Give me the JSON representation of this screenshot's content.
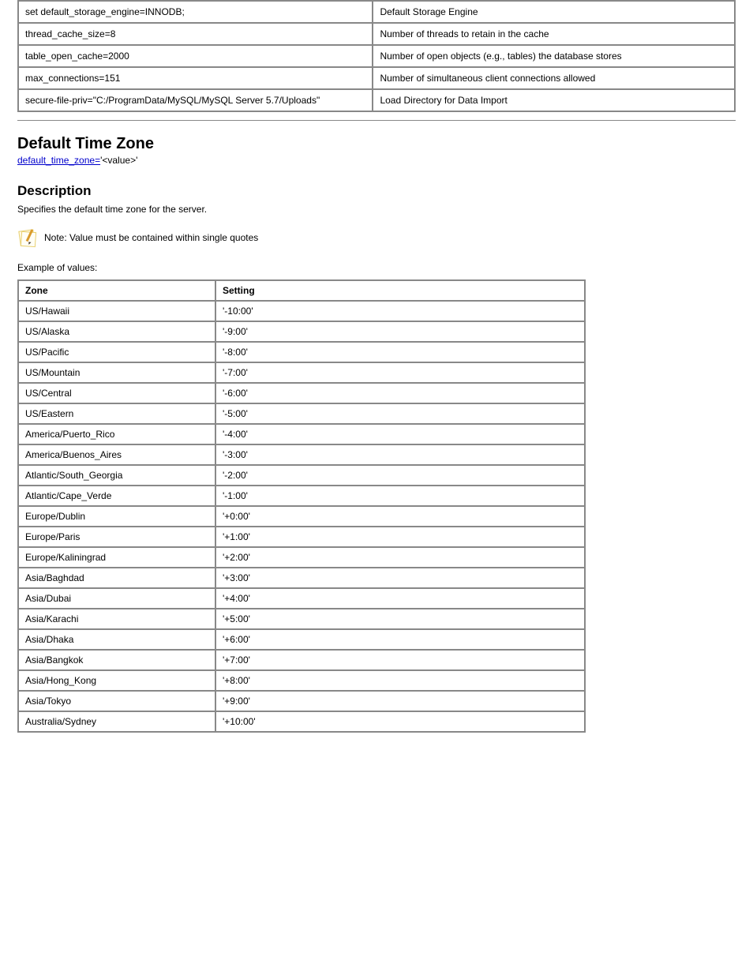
{
  "options_table": {
    "rows": [
      [
        "set default_storage_engine=INNODB;",
        "Default Storage Engine"
      ],
      [
        "thread_cache_size=8",
        "Number of threads to retain in the cache"
      ],
      [
        "table_open_cache=2000",
        "Number of open objects (e.g., tables) the database stores"
      ],
      [
        "max_connections=151",
        "Number of simultaneous client connections allowed"
      ],
      [
        "secure-file-priv=\"C:/ProgramData/MySQL/MySQL\nServer 5.7/Uploads\"",
        "Load Directory for Data Import"
      ]
    ]
  },
  "section": {
    "title": "Default Time Zone",
    "link_text": "default_time_zone=",
    "link_href": "https://dev.mysql.com/doc/refman/5.7/en/server-options.html#option_mysqld_default-time-zone",
    "subtext": "'<value>'",
    "sub_heading": "Description",
    "description": "Specifies the default time zone for the server.",
    "note_text": "Note: Value must be contained within single quotes",
    "example_label": "Example of values:"
  },
  "tz_table": {
    "headers": [
      "Zone",
      "Setting"
    ],
    "rows": [
      [
        "US/Hawaii",
        "'-10:00'"
      ],
      [
        "US/Alaska",
        "'-9:00'"
      ],
      [
        "US/Pacific",
        "'-8:00'"
      ],
      [
        "US/Mountain",
        "'-7:00'"
      ],
      [
        "US/Central",
        "'-6:00'"
      ],
      [
        "US/Eastern",
        "'-5:00'"
      ],
      [
        "America/Puerto_Rico",
        "'-4:00'"
      ],
      [
        "America/Buenos_Aires",
        "'-3:00'"
      ],
      [
        "Atlantic/South_Georgia",
        "'-2:00'"
      ],
      [
        "Atlantic/Cape_Verde",
        "'-1:00'"
      ],
      [
        "Europe/Dublin",
        "'+0:00'"
      ],
      [
        "Europe/Paris",
        "'+1:00'"
      ],
      [
        "Europe/Kaliningrad",
        "'+2:00'"
      ],
      [
        "Asia/Baghdad",
        "'+3:00'"
      ],
      [
        "Asia/Dubai",
        "'+4:00'"
      ],
      [
        "Asia/Karachi",
        "'+5:00'"
      ],
      [
        "Asia/Dhaka",
        "'+6:00'"
      ],
      [
        "Asia/Bangkok",
        "'+7:00'"
      ],
      [
        "Asia/Hong_Kong",
        "'+8:00'"
      ],
      [
        "Asia/Tokyo",
        "'+9:00'"
      ],
      [
        "Australia/Sydney",
        "'+10:00'"
      ]
    ]
  },
  "colors": {
    "link_color": "#0000cc",
    "border_color": "#888888",
    "note_paper": "#fff9e6",
    "note_paper_edge": "#e8d070",
    "note_pencil_body": "#d99a2b",
    "note_pencil_tip": "#40362a"
  }
}
